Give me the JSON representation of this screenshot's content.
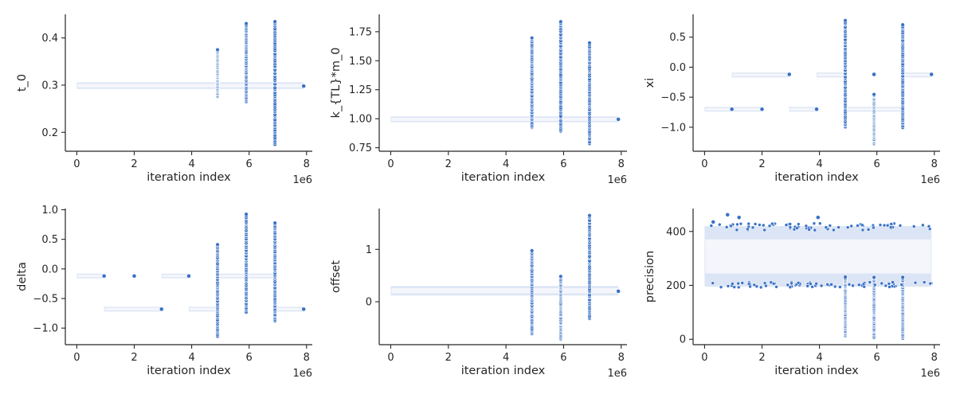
{
  "chart_data": [
    {
      "type": "scatter",
      "xlabel": "iteration index",
      "ylabel": "t_0",
      "x_offset_label": "1e6",
      "xlim": [
        -0.4,
        8.2
      ],
      "ylim": [
        0.16,
        0.45
      ],
      "xticks": [
        0,
        2,
        4,
        6,
        8
      ],
      "yticks": [
        0.2,
        0.3,
        0.4
      ],
      "ytick_labels": [
        "0.2",
        "0.3",
        "0.4"
      ],
      "bands": [
        {
          "x": [
            0.0,
            7.9
          ],
          "y": [
            0.292,
            0.306
          ]
        }
      ],
      "columns": [
        {
          "x": 4.9,
          "y": [
            0.275,
            0.375
          ]
        },
        {
          "x": 5.9,
          "y": [
            0.265,
            0.43
          ]
        },
        {
          "x": 6.9,
          "y": [
            0.175,
            0.435
          ]
        }
      ],
      "points": [
        {
          "x": 7.9,
          "y": 0.298
        }
      ]
    },
    {
      "type": "scatter",
      "xlabel": "iteration index",
      "ylabel": "k_{TL}*m_0",
      "x_offset_label": "1e6",
      "xlim": [
        -0.4,
        8.2
      ],
      "ylim": [
        0.72,
        1.9
      ],
      "xticks": [
        0,
        2,
        4,
        6,
        8
      ],
      "yticks": [
        0.75,
        1.0,
        1.25,
        1.5,
        1.75
      ],
      "ytick_labels": [
        "0.75",
        "1.00",
        "1.25",
        "1.50",
        "1.75"
      ],
      "bands": [
        {
          "x": [
            0.0,
            7.9
          ],
          "y": [
            0.97,
            1.02
          ]
        }
      ],
      "columns": [
        {
          "x": 4.9,
          "y": [
            0.92,
            1.7
          ]
        },
        {
          "x": 5.9,
          "y": [
            0.89,
            1.84
          ]
        },
        {
          "x": 6.9,
          "y": [
            0.78,
            1.65
          ]
        }
      ],
      "points": [
        {
          "x": 7.9,
          "y": 0.995
        }
      ]
    },
    {
      "type": "scatter",
      "xlabel": "iteration index",
      "ylabel": "xi",
      "x_offset_label": "1e6",
      "xlim": [
        -0.4,
        8.2
      ],
      "ylim": [
        -1.4,
        0.88
      ],
      "xticks": [
        0,
        2,
        4,
        6,
        8
      ],
      "yticks": [
        -1.0,
        -0.5,
        0.0,
        0.5
      ],
      "ytick_labels": [
        "−1.0",
        "−0.5",
        "0.0",
        "0.5"
      ],
      "bands": [
        {
          "x": [
            0.0,
            0.95
          ],
          "y": [
            -0.74,
            -0.66
          ]
        },
        {
          "x": [
            1.0,
            2.0
          ],
          "y": [
            -0.74,
            -0.66
          ]
        },
        {
          "x": [
            2.95,
            3.9
          ],
          "y": [
            -0.74,
            -0.66
          ]
        },
        {
          "x": [
            0.95,
            2.95
          ],
          "y": [
            -0.17,
            -0.09
          ]
        },
        {
          "x": [
            3.9,
            4.9
          ],
          "y": [
            -0.17,
            -0.09
          ]
        },
        {
          "x": [
            4.9,
            6.9
          ],
          "y": [
            -0.74,
            -0.66
          ]
        },
        {
          "x": [
            6.9,
            7.9
          ],
          "y": [
            -0.17,
            -0.09
          ]
        }
      ],
      "columns": [
        {
          "x": 4.9,
          "y": [
            -1.0,
            0.78
          ]
        },
        {
          "x": 5.9,
          "y": [
            -1.28,
            -0.45
          ]
        },
        {
          "x": 6.9,
          "y": [
            -1.0,
            0.7
          ]
        }
      ],
      "points": [
        {
          "x": 0.95,
          "y": -0.7
        },
        {
          "x": 2.0,
          "y": -0.7
        },
        {
          "x": 2.95,
          "y": -0.12
        },
        {
          "x": 3.9,
          "y": -0.7
        },
        {
          "x": 5.9,
          "y": -0.12
        },
        {
          "x": 7.9,
          "y": -0.12
        }
      ]
    },
    {
      "type": "scatter",
      "xlabel": "iteration index",
      "ylabel": "delta",
      "x_offset_label": "1e6",
      "xlim": [
        -0.4,
        8.2
      ],
      "ylim": [
        -1.28,
        1.02
      ],
      "xticks": [
        0,
        2,
        4,
        6,
        8
      ],
      "yticks": [
        -1.0,
        -0.5,
        0.0,
        0.5,
        1.0
      ],
      "ytick_labels": [
        "−1.0",
        "−0.5",
        "0.0",
        "0.5",
        "1.0"
      ],
      "bands": [
        {
          "x": [
            0.0,
            0.95
          ],
          "y": [
            -0.16,
            -0.08
          ]
        },
        {
          "x": [
            0.95,
            2.95
          ],
          "y": [
            -0.72,
            -0.64
          ]
        },
        {
          "x": [
            2.95,
            3.9
          ],
          "y": [
            -0.16,
            -0.08
          ]
        },
        {
          "x": [
            3.9,
            4.9
          ],
          "y": [
            -0.72,
            -0.64
          ]
        },
        {
          "x": [
            4.9,
            6.9
          ],
          "y": [
            -0.16,
            -0.08
          ]
        },
        {
          "x": [
            6.9,
            7.9
          ],
          "y": [
            -0.72,
            -0.64
          ]
        }
      ],
      "columns": [
        {
          "x": 4.9,
          "y": [
            -1.15,
            0.42
          ]
        },
        {
          "x": 5.9,
          "y": [
            -0.72,
            0.92
          ]
        },
        {
          "x": 6.9,
          "y": [
            -0.88,
            0.78
          ]
        }
      ],
      "points": [
        {
          "x": 0.95,
          "y": -0.12
        },
        {
          "x": 2.0,
          "y": -0.12
        },
        {
          "x": 2.95,
          "y": -0.68
        },
        {
          "x": 3.9,
          "y": -0.12
        },
        {
          "x": 7.9,
          "y": -0.68
        }
      ]
    },
    {
      "type": "scatter",
      "xlabel": "iteration index",
      "ylabel": "offset",
      "x_offset_label": "1e6",
      "xlim": [
        -0.4,
        8.2
      ],
      "ylim": [
        -0.82,
        1.78
      ],
      "xticks": [
        0,
        2,
        4,
        6,
        8
      ],
      "yticks": [
        0,
        1
      ],
      "ytick_labels": [
        "0",
        "1"
      ],
      "bands": [
        {
          "x": [
            0.0,
            7.9
          ],
          "y": [
            0.12,
            0.3
          ]
        }
      ],
      "columns": [
        {
          "x": 4.9,
          "y": [
            -0.62,
            0.98
          ]
        },
        {
          "x": 5.9,
          "y": [
            -0.72,
            0.48
          ]
        },
        {
          "x": 6.9,
          "y": [
            -0.32,
            1.65
          ]
        }
      ],
      "points": [
        {
          "x": 7.9,
          "y": 0.2
        }
      ]
    },
    {
      "type": "scatter",
      "xlabel": "iteration index",
      "ylabel": "precision",
      "x_offset_label": "1e6",
      "xlim": [
        -0.4,
        8.2
      ],
      "ylim": [
        -20,
        485
      ],
      "xticks": [
        0,
        2,
        4,
        6,
        8
      ],
      "yticks": [
        0,
        200,
        400
      ],
      "ytick_labels": [
        "0",
        "200",
        "400"
      ],
      "bands": [
        {
          "x": [
            0.0,
            7.9
          ],
          "y": [
            195,
            420
          ]
        }
      ],
      "columns": [
        {
          "x": 4.9,
          "y": [
            15,
            230
          ]
        },
        {
          "x": 5.9,
          "y": [
            5,
            230
          ]
        },
        {
          "x": 6.9,
          "y": [
            2,
            230
          ]
        }
      ],
      "points": [
        {
          "x": 0.8,
          "y": 462
        },
        {
          "x": 1.2,
          "y": 452
        },
        {
          "x": 3.95,
          "y": 452
        },
        {
          "x": 0.3,
          "y": 435
        }
      ]
    }
  ]
}
